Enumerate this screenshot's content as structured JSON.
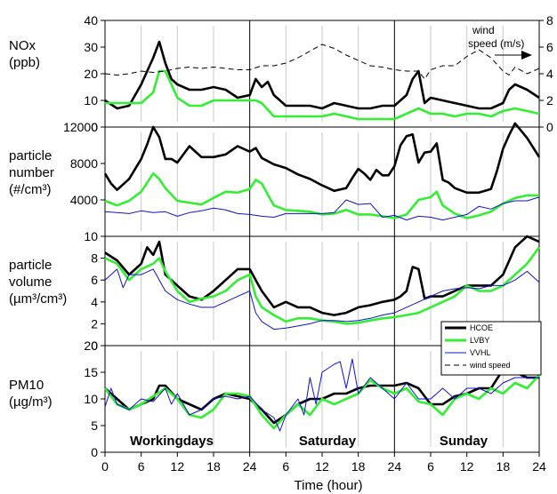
{
  "colors": {
    "HCOE": "#000000",
    "LVBY": "#33ee33",
    "VVHL": "#1111cc",
    "wind speed": "#000000",
    "grid_vertical": "#c8c8c8"
  },
  "legend": {
    "entries": [
      "HCOE",
      "LVBY",
      "VVHL",
      "wind speed"
    ],
    "placement": "inside fourth panel, top-right"
  },
  "chart_data": [
    {
      "type": "line",
      "panel": "nox",
      "ylabel": [
        "NOx",
        "(ppb)"
      ],
      "ylim": [
        0,
        40
      ],
      "yticks": [
        0,
        10,
        20,
        30,
        40
      ],
      "y2label": "wind speed (m/s)",
      "y2lim": [
        0,
        8
      ],
      "y2ticks": [
        0,
        2,
        4,
        6,
        8
      ],
      "annotation": [
        "wind",
        "speed (m/s)"
      ],
      "series": [
        {
          "name": "HCOE",
          "x": [
            0,
            2,
            4,
            6,
            8,
            9,
            10,
            11,
            12,
            14,
            16,
            18,
            20,
            22,
            24,
            25,
            26,
            27,
            28,
            29,
            30,
            32,
            34,
            36,
            38,
            40,
            42,
            44,
            46,
            48,
            49,
            50,
            51,
            52,
            53,
            54,
            56,
            58,
            60,
            62,
            64,
            66,
            67,
            68,
            70,
            72
          ],
          "y": [
            10,
            7,
            8,
            16,
            26,
            32,
            24,
            18,
            16,
            14,
            14,
            15,
            14,
            11,
            12,
            18,
            15,
            17,
            12,
            10,
            8,
            8,
            8,
            7,
            9,
            8,
            7,
            7,
            8,
            8,
            10,
            12,
            18,
            21,
            9,
            11,
            10,
            9,
            8,
            7,
            7,
            9,
            14,
            16,
            14,
            11
          ]
        },
        {
          "name": "LVBY",
          "x": [
            0,
            3,
            6,
            8,
            9,
            10,
            11,
            12,
            14,
            16,
            18,
            20,
            22,
            24,
            25,
            26,
            28,
            30,
            32,
            34,
            36,
            38,
            40,
            42,
            44,
            46,
            48,
            49,
            50,
            52,
            54,
            56,
            58,
            60,
            62,
            64,
            66,
            68,
            70,
            72
          ],
          "y": [
            9,
            9,
            9,
            13,
            21,
            21,
            16,
            11,
            8,
            8,
            10,
            10,
            10,
            10,
            10,
            9,
            4,
            4,
            4,
            4,
            4,
            5,
            4,
            3,
            3,
            3,
            3,
            4,
            5,
            7,
            5,
            5,
            4,
            5,
            5,
            4,
            6,
            7,
            6,
            5
          ]
        },
        {
          "name": "wind speed",
          "axis": "y2",
          "x": [
            0,
            2,
            4,
            6,
            8,
            10,
            12,
            14,
            16,
            18,
            20,
            22,
            24,
            26,
            28,
            30,
            32,
            34,
            36,
            38,
            40,
            42,
            44,
            46,
            48,
            50,
            52,
            53,
            54,
            56,
            58,
            60,
            62,
            64,
            66,
            67,
            68,
            70,
            72
          ],
          "y": [
            4.0,
            3.9,
            4.0,
            4.2,
            4.1,
            4.2,
            4.4,
            4.5,
            4.4,
            4.5,
            4.4,
            4.3,
            4.3,
            4.6,
            4.6,
            4.8,
            5.2,
            5.7,
            6.2,
            5.9,
            5.4,
            5.0,
            4.6,
            4.5,
            4.3,
            4.2,
            4.2,
            3.6,
            4.3,
            4.6,
            4.6,
            5.3,
            5.8,
            5.2,
            4.2,
            3.9,
            4.5,
            4.0,
            4.4
          ]
        }
      ]
    },
    {
      "type": "line",
      "panel": "particle-number",
      "ylabel": [
        "particle",
        "number",
        "(#/cm³)"
      ],
      "ylim": [
        0,
        12000
      ],
      "yticks": [
        4000,
        8000,
        12000
      ],
      "series": [
        {
          "name": "HCOE",
          "x": [
            0,
            1,
            2,
            4,
            6,
            7,
            8,
            9,
            10,
            11,
            12,
            14,
            16,
            18,
            20,
            22,
            24,
            25,
            26,
            28,
            30,
            32,
            34,
            36,
            38,
            40,
            41,
            42,
            43,
            44,
            45,
            46,
            47,
            48,
            49,
            50,
            51,
            52,
            53,
            54,
            55,
            56,
            57,
            58,
            60,
            62,
            64,
            65,
            66,
            67,
            68,
            70,
            72
          ],
          "y": [
            6900,
            5800,
            5100,
            6300,
            8500,
            10100,
            12000,
            10900,
            8500,
            8500,
            8100,
            9900,
            8700,
            8700,
            9000,
            9900,
            9300,
            9700,
            8600,
            7900,
            7500,
            6800,
            6300,
            5600,
            5000,
            5300,
            6400,
            7400,
            6900,
            6200,
            7300,
            6700,
            6700,
            7700,
            10000,
            11000,
            11200,
            8100,
            9200,
            9300,
            10200,
            6200,
            5900,
            5300,
            4800,
            4800,
            5200,
            7200,
            9600,
            11100,
            12400,
            10800,
            8700
          ]
        },
        {
          "name": "LVBY",
          "x": [
            0,
            2,
            4,
            6,
            8,
            9,
            10,
            12,
            14,
            16,
            18,
            20,
            22,
            24,
            25,
            26,
            28,
            30,
            32,
            34,
            36,
            38,
            40,
            42,
            44,
            46,
            48,
            50,
            52,
            54,
            55,
            56,
            58,
            60,
            62,
            64,
            66,
            68,
            70,
            72
          ],
          "y": [
            3900,
            3400,
            3900,
            4900,
            6900,
            6300,
            5300,
            3900,
            3700,
            3500,
            4200,
            4900,
            4800,
            5200,
            6200,
            5800,
            3400,
            2900,
            2800,
            2700,
            2400,
            2500,
            2900,
            2400,
            2400,
            2200,
            2000,
            2400,
            4000,
            4300,
            4900,
            3400,
            2500,
            2000,
            2300,
            2700,
            3600,
            4200,
            4500,
            4500
          ]
        },
        {
          "name": "VVHL",
          "x": [
            0,
            2,
            4,
            6,
            8,
            10,
            12,
            14,
            16,
            18,
            20,
            22,
            24,
            26,
            28,
            30,
            32,
            34,
            36,
            38,
            40,
            42,
            44,
            46,
            48,
            50,
            52,
            54,
            56,
            58,
            60,
            62,
            64,
            66,
            68,
            70,
            72
          ],
          "y": [
            2700,
            2600,
            2500,
            2800,
            2600,
            2700,
            2200,
            2600,
            2800,
            3100,
            2900,
            2500,
            2400,
            2200,
            2100,
            2500,
            2500,
            2500,
            2500,
            2600,
            4000,
            3500,
            3600,
            2100,
            2300,
            1800,
            2200,
            2100,
            1800,
            2100,
            2400,
            3300,
            3000,
            3600,
            3900,
            3900,
            4300
          ]
        }
      ]
    },
    {
      "type": "line",
      "panel": "particle-volume",
      "ylabel": [
        "particle",
        "volume",
        "(µm³/cm³)"
      ],
      "ylim": [
        0,
        10
      ],
      "yticks": [
        0,
        2,
        4,
        6,
        8,
        10
      ],
      "series": [
        {
          "name": "HCOE",
          "x": [
            0,
            2,
            4,
            6,
            7,
            8,
            9,
            10,
            12,
            14,
            16,
            18,
            20,
            22,
            24,
            25,
            26,
            28,
            30,
            32,
            34,
            36,
            38,
            40,
            42,
            44,
            46,
            48,
            49,
            50,
            51,
            52,
            53,
            54,
            56,
            58,
            60,
            62,
            64,
            66,
            68,
            69,
            70,
            72
          ],
          "y": [
            8.5,
            7.8,
            6.5,
            7.5,
            9.0,
            8.3,
            9.5,
            6.5,
            5.5,
            4.5,
            4.2,
            5.0,
            6.0,
            7.0,
            7.0,
            6.0,
            5.0,
            3.5,
            4.0,
            3.5,
            3.5,
            3.0,
            2.8,
            3.0,
            3.5,
            3.7,
            4.0,
            4.2,
            4.5,
            5.0,
            7.2,
            7.0,
            4.3,
            4.5,
            4.5,
            5.0,
            5.5,
            5.5,
            5.5,
            6.5,
            9.0,
            9.5,
            10.0,
            9.5
          ]
        },
        {
          "name": "LVBY",
          "x": [
            0,
            2,
            4,
            6,
            8,
            9,
            10,
            12,
            14,
            16,
            18,
            20,
            22,
            24,
            25,
            26,
            28,
            30,
            32,
            34,
            36,
            38,
            40,
            42,
            44,
            46,
            48,
            50,
            52,
            54,
            56,
            58,
            60,
            62,
            64,
            66,
            68,
            70,
            72
          ],
          "y": [
            8.0,
            7.5,
            6.0,
            7.0,
            7.5,
            8.0,
            6.8,
            5.0,
            4.0,
            4.3,
            4.5,
            5.0,
            6.0,
            6.5,
            4.5,
            3.5,
            2.8,
            2.2,
            2.5,
            2.5,
            2.3,
            2.2,
            2.0,
            2.1,
            2.3,
            2.5,
            2.6,
            2.8,
            3.0,
            3.5,
            4.0,
            4.5,
            5.5,
            5.0,
            5.0,
            5.5,
            6.5,
            7.5,
            9.0
          ]
        },
        {
          "name": "VVHL",
          "x": [
            0,
            2,
            3,
            4,
            6,
            8,
            10,
            12,
            14,
            16,
            18,
            20,
            22,
            24,
            25,
            26,
            28,
            30,
            32,
            34,
            36,
            38,
            40,
            42,
            44,
            46,
            48,
            50,
            52,
            54,
            56,
            58,
            60,
            62,
            64,
            66,
            68,
            70,
            72
          ],
          "y": [
            6.0,
            7.0,
            5.3,
            6.5,
            6.5,
            7.0,
            5.0,
            4.2,
            3.8,
            3.5,
            3.5,
            4.0,
            4.5,
            5.0,
            3.0,
            2.2,
            1.5,
            1.6,
            1.8,
            2.0,
            2.3,
            2.3,
            2.2,
            2.3,
            2.5,
            2.8,
            3.0,
            3.5,
            4.0,
            4.5,
            5.0,
            5.2,
            5.3,
            5.2,
            5.5,
            5.5,
            6.0,
            6.8,
            5.8
          ]
        }
      ]
    },
    {
      "type": "line",
      "panel": "pm10",
      "ylabel": [
        "PM10",
        "(µg/m³)"
      ],
      "ylim": [
        0,
        20
      ],
      "yticks": [
        0,
        5,
        10,
        15,
        20
      ],
      "day_labels": [
        "Workingdays",
        "Saturday",
        "Sunday"
      ],
      "xlabel": "Time (hour)",
      "xticks": [
        "0",
        "6",
        "12",
        "18",
        "24",
        "6",
        "12",
        "18",
        "24",
        "6",
        "12",
        "18",
        "24"
      ],
      "series": [
        {
          "name": "HCOE",
          "x": [
            0,
            2,
            4,
            6,
            8,
            9,
            10,
            12,
            14,
            16,
            18,
            20,
            22,
            24,
            26,
            28,
            30,
            32,
            34,
            36,
            38,
            40,
            42,
            44,
            46,
            48,
            50,
            52,
            54,
            56,
            58,
            60,
            62,
            64,
            66,
            68,
            70,
            72
          ],
          "y": [
            12,
            10,
            8,
            9,
            10,
            12.5,
            12.5,
            10,
            9,
            8,
            10,
            11,
            10.5,
            10,
            8,
            5.5,
            7,
            9,
            10,
            10,
            11,
            11,
            12,
            12.5,
            12.5,
            12.5,
            13,
            12,
            9,
            9,
            10.5,
            11,
            12,
            12,
            15.5,
            15,
            14,
            14
          ]
        },
        {
          "name": "LVBY",
          "x": [
            0,
            2,
            4,
            6,
            8,
            10,
            12,
            14,
            16,
            18,
            20,
            22,
            24,
            26,
            28,
            30,
            32,
            34,
            36,
            38,
            40,
            42,
            44,
            46,
            48,
            50,
            52,
            54,
            56,
            58,
            60,
            62,
            64,
            66,
            68,
            70,
            72
          ],
          "y": [
            12,
            9,
            8,
            9,
            10.5,
            12,
            10,
            7,
            6.5,
            8,
            11,
            11,
            10.5,
            7,
            4.5,
            7,
            9,
            7,
            10,
            9,
            10,
            11,
            13.5,
            12,
            11,
            12,
            9.5,
            9,
            7,
            10,
            11,
            10,
            12,
            11,
            13,
            12,
            14.5
          ]
        },
        {
          "name": "VVHL",
          "x": [
            0,
            1,
            2,
            4,
            6,
            8,
            10,
            11,
            12,
            14,
            16,
            18,
            20,
            22,
            24,
            26,
            28,
            29,
            30,
            32,
            33,
            34,
            35,
            36,
            38,
            39,
            40,
            41,
            42,
            44,
            46,
            48,
            50,
            52,
            54,
            56,
            58,
            60,
            62,
            64,
            66,
            68,
            70,
            72
          ],
          "y": [
            8.5,
            12,
            9,
            8,
            10,
            9.5,
            12,
            9,
            11,
            7,
            8,
            10,
            10.5,
            10,
            10.5,
            8,
            6.5,
            4,
            7,
            10,
            7,
            14,
            9,
            15,
            16.5,
            17,
            12,
            17.5,
            11,
            14,
            12,
            10,
            13,
            10,
            10,
            12,
            10,
            12,
            12,
            11,
            13,
            14,
            14,
            14
          ]
        }
      ]
    }
  ]
}
